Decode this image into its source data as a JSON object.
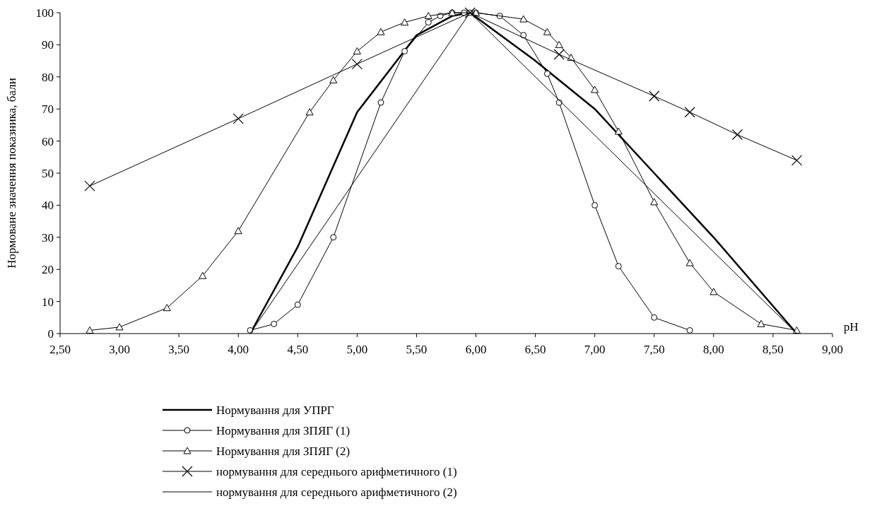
{
  "chart_data": {
    "type": "line",
    "ylabel": "Нормоване значення показника, бали",
    "xlabel": "pH",
    "xlim": [
      2.5,
      9.0
    ],
    "xticks": [
      {
        "value": 2.5,
        "label": "2,50"
      },
      {
        "value": 3,
        "label": "3,00"
      },
      {
        "value": 3.5,
        "label": "3,50"
      },
      {
        "value": 4,
        "label": "4,00"
      },
      {
        "value": 4.5,
        "label": "4,50"
      },
      {
        "value": 5,
        "label": "5,00"
      },
      {
        "value": 5.5,
        "label": "5,50"
      },
      {
        "value": 6,
        "label": "6,00"
      },
      {
        "value": 6.5,
        "label": "6,50"
      },
      {
        "value": 7,
        "label": "7,00"
      },
      {
        "value": 7.5,
        "label": "7,50"
      },
      {
        "value": 8,
        "label": "8,00"
      },
      {
        "value": 8.5,
        "label": "8,50"
      },
      {
        "value": 9,
        "label": "9,00"
      }
    ],
    "ylim": [
      0,
      100
    ],
    "yticks": [
      0,
      10,
      20,
      30,
      40,
      50,
      60,
      70,
      80,
      90,
      100
    ],
    "grid": false,
    "legend": "bottom",
    "line_style": "solid",
    "series": [
      {
        "name": "Нормування для УПРГ",
        "color": "#000000",
        "marker": "none",
        "x": [
          4.1,
          4.5,
          5.0,
          5.5,
          5.8,
          5.95,
          6.5,
          7.0,
          7.5,
          8.0,
          8.7
        ],
        "values": [
          0,
          27,
          69,
          93,
          99,
          100,
          85,
          70,
          50,
          30,
          0
        ]
      },
      {
        "name": "Нормування для ЗПЯГ (1)",
        "color": "#000000",
        "marker": "circle",
        "x": [
          4.1,
          4.3,
          4.5,
          4.8,
          5.2,
          5.4,
          5.6,
          5.7,
          5.8,
          5.9,
          5.95,
          6.0,
          6.2,
          6.4,
          6.6,
          6.7,
          7.0,
          7.2,
          7.5,
          7.8
        ],
        "values": [
          1,
          3,
          9,
          30,
          72,
          88,
          97,
          99,
          100,
          100,
          100,
          100,
          99,
          93,
          81,
          72,
          40,
          21,
          5,
          1
        ]
      },
      {
        "name": "Нормування для ЗПЯГ (2)",
        "color": "#000000",
        "marker": "triangle",
        "x": [
          2.75,
          3.0,
          3.4,
          3.7,
          4.0,
          4.6,
          4.8,
          5.0,
          5.2,
          5.4,
          5.6,
          5.8,
          6.0,
          6.4,
          6.6,
          6.7,
          6.8,
          7.0,
          7.2,
          7.5,
          7.8,
          8.0,
          8.4,
          8.7
        ],
        "values": [
          1,
          2,
          8,
          18,
          32,
          69,
          79,
          88,
          94,
          97,
          99,
          100,
          100,
          98,
          94,
          90,
          86,
          76,
          63,
          41,
          22,
          13,
          3,
          1
        ]
      },
      {
        "name": "нормування для середнього арифметичного (1)",
        "color": "#000000",
        "marker": "cross",
        "x": [
          2.75,
          4.0,
          5.0,
          5.95,
          6.7,
          7.5,
          7.8,
          8.2,
          8.7
        ],
        "values": [
          46,
          67,
          84,
          100,
          87,
          74,
          69,
          62,
          54
        ]
      },
      {
        "name": "нормування для середнього арифметичного (2)",
        "color": "#000000",
        "marker": "none",
        "x": [
          4.1,
          5.95,
          8.7
        ],
        "values": [
          0,
          100,
          0
        ]
      }
    ]
  }
}
